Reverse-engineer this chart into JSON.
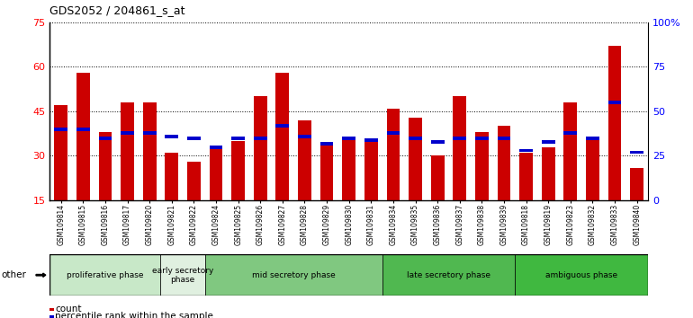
{
  "title": "GDS2052 / 204861_s_at",
  "samples": [
    "GSM109814",
    "GSM109815",
    "GSM109816",
    "GSM109817",
    "GSM109820",
    "GSM109821",
    "GSM109822",
    "GSM109824",
    "GSM109825",
    "GSM109826",
    "GSM109827",
    "GSM109828",
    "GSM109829",
    "GSM109830",
    "GSM109831",
    "GSM109834",
    "GSM109835",
    "GSM109836",
    "GSM109837",
    "GSM109838",
    "GSM109839",
    "GSM109818",
    "GSM109819",
    "GSM109823",
    "GSM109832",
    "GSM109833",
    "GSM109840"
  ],
  "count": [
    47,
    58,
    38,
    48,
    48,
    31,
    28,
    33,
    35,
    50,
    58,
    42,
    34,
    36,
    35,
    46,
    43,
    30,
    50,
    38,
    40,
    31,
    33,
    48,
    36,
    67,
    26
  ],
  "percentile": [
    40,
    40,
    35,
    38,
    38,
    36,
    35,
    30,
    35,
    35,
    42,
    36,
    32,
    35,
    34,
    38,
    35,
    33,
    35,
    35,
    35,
    28,
    33,
    38,
    35,
    55,
    27
  ],
  "phases": [
    {
      "name": "proliferative phase",
      "start": 0,
      "end": 5,
      "color": "#c8e8c8"
    },
    {
      "name": "early secretory\nphase",
      "start": 5,
      "end": 7,
      "color": "#e0f0e0"
    },
    {
      "name": "mid secretory phase",
      "start": 7,
      "end": 15,
      "color": "#80c880"
    },
    {
      "name": "late secretory phase",
      "start": 15,
      "end": 21,
      "color": "#50b850"
    },
    {
      "name": "ambiguous phase",
      "start": 21,
      "end": 27,
      "color": "#40b840"
    }
  ],
  "ylim_left": [
    15,
    75
  ],
  "ylim_right": [
    0,
    100
  ],
  "bar_color_count": "#cc0000",
  "bar_color_percentile": "#0000cc",
  "bg_color": "#ffffff",
  "legend_count": "count",
  "legend_percentile": "percentile rank within the sample",
  "other_label": "other",
  "yticks_left": [
    15,
    30,
    45,
    60,
    75
  ],
  "yticks_right": [
    0,
    25,
    50,
    75,
    100
  ],
  "bar_width": 0.6
}
